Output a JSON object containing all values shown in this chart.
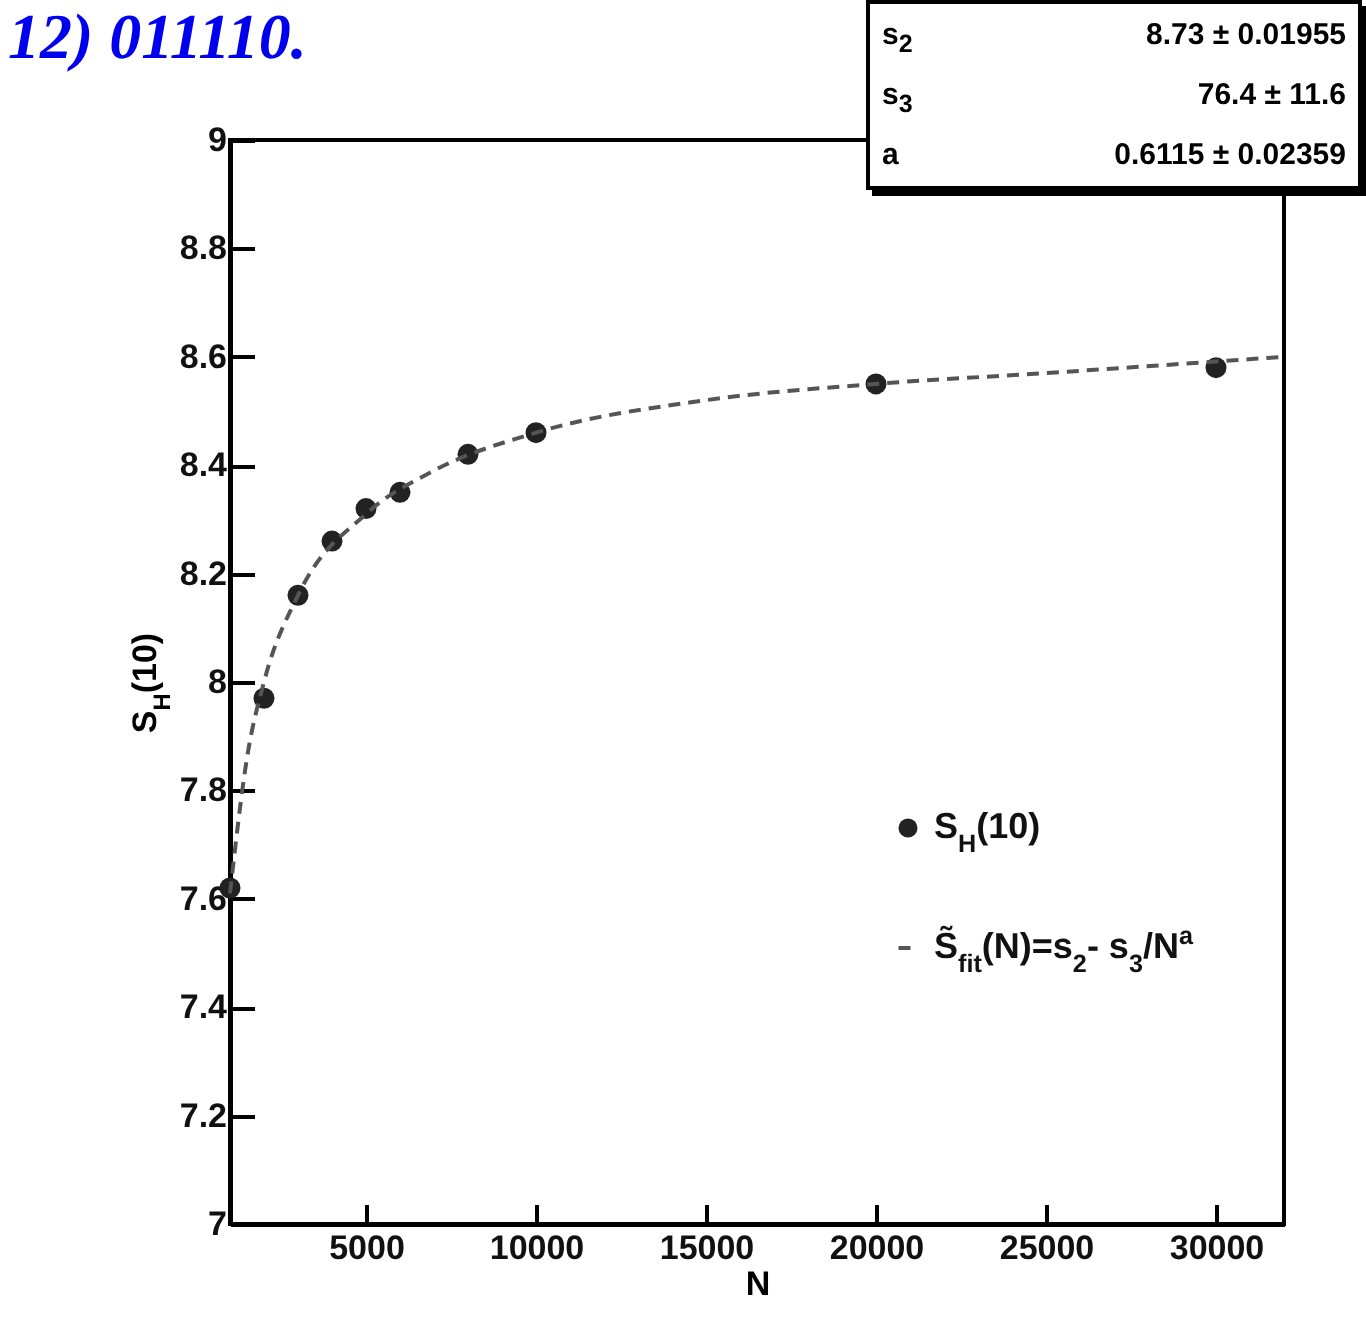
{
  "chart_data": {
    "type": "scatter",
    "xlabel": "N",
    "ylabel": "S$_{H}$(10)",
    "annotations": [
      "12) 011110.",
      "s$_{2}$ 8.73 ± 0.01955",
      "s$_{3}$ 76.4 ± 11.6",
      "a 0.6115 ± 0.02359"
    ],
    "series": [
      {
        "name": "S$_{H}$(10)",
        "color": "#222222",
        "marker": "circle",
        "x": [
          1000,
          2000,
          3000,
          4000,
          5000,
          6000,
          8000,
          10000,
          20000,
          30000
        ],
        "values": [
          7.62,
          7.97,
          8.16,
          8.26,
          8.32,
          8.35,
          8.42,
          8.46,
          8.55,
          8.58
        ]
      },
      {
        "name": "S̃$_{fit}$(N)=s$_{2}$- s$_{3}$/N$^{a}$",
        "type": "line",
        "color": "#555555",
        "line_style": "dashed",
        "x": [
          1000,
          1500,
          2000,
          3000,
          5000,
          7000,
          10000,
          15000,
          20000,
          25000,
          32000
        ],
        "values": [
          7.61,
          7.86,
          8.0,
          8.16,
          8.31,
          8.39,
          8.46,
          8.52,
          8.55,
          8.57,
          8.6
        ]
      }
    ],
    "xlim": [
      1000,
      32000
    ],
    "xticks": [
      5000,
      10000,
      15000,
      20000,
      25000,
      30000
    ],
    "ylim": [
      7,
      9
    ],
    "yticks": [
      7,
      7.2,
      7.4,
      7.6,
      7.8,
      8,
      8.2,
      8.4,
      8.6,
      8.8,
      9
    ],
    "grid": false,
    "legend": "right"
  }
}
